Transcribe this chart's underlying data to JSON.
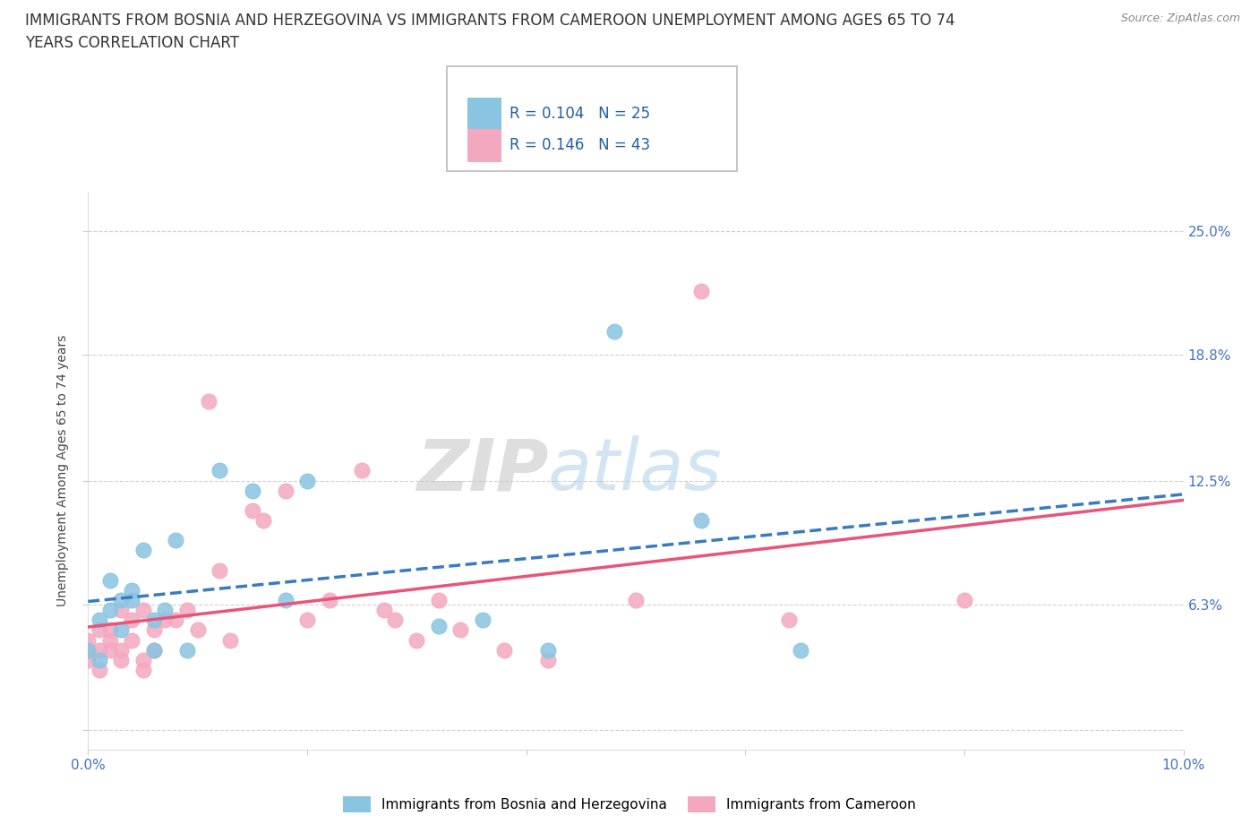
{
  "title_line1": "IMMIGRANTS FROM BOSNIA AND HERZEGOVINA VS IMMIGRANTS FROM CAMEROON UNEMPLOYMENT AMONG AGES 65 TO 74",
  "title_line2": "YEARS CORRELATION CHART",
  "source": "Source: ZipAtlas.com",
  "ylabel": "Unemployment Among Ages 65 to 74 years",
  "xlim": [
    0.0,
    0.1
  ],
  "ylim": [
    -0.01,
    0.27
  ],
  "x_ticks": [
    0.0,
    0.02,
    0.04,
    0.06,
    0.08,
    0.1
  ],
  "x_tick_labels": [
    "0.0%",
    "",
    "",
    "",
    "",
    "10.0%"
  ],
  "y_tick_vals": [
    0.0,
    0.063,
    0.125,
    0.188,
    0.25
  ],
  "y_tick_labels": [
    "",
    "6.3%",
    "12.5%",
    "18.8%",
    "25.0%"
  ],
  "color_bosnia": "#89c4e1",
  "color_cameroon": "#f4a8bf",
  "trendline_color_bosnia": "#3a7bbf",
  "trendline_color_cameroon": "#e8547a",
  "watermark_zip": "ZIP",
  "watermark_atlas": "atlas",
  "legend_R_bosnia": "R = 0.104",
  "legend_N_bosnia": "N = 25",
  "legend_R_cameroon": "R = 0.146",
  "legend_N_cameroon": "N = 43",
  "bosnia_x": [
    0.0,
    0.001,
    0.001,
    0.002,
    0.002,
    0.003,
    0.003,
    0.004,
    0.004,
    0.005,
    0.006,
    0.006,
    0.007,
    0.008,
    0.009,
    0.012,
    0.015,
    0.018,
    0.02,
    0.032,
    0.036,
    0.042,
    0.048,
    0.056,
    0.065
  ],
  "bosnia_y": [
    0.04,
    0.055,
    0.035,
    0.06,
    0.075,
    0.065,
    0.05,
    0.07,
    0.065,
    0.09,
    0.055,
    0.04,
    0.06,
    0.095,
    0.04,
    0.13,
    0.12,
    0.065,
    0.125,
    0.052,
    0.055,
    0.04,
    0.2,
    0.105,
    0.04
  ],
  "cameroon_x": [
    0.0,
    0.0,
    0.0,
    0.001,
    0.001,
    0.001,
    0.002,
    0.002,
    0.002,
    0.003,
    0.003,
    0.003,
    0.004,
    0.004,
    0.005,
    0.005,
    0.005,
    0.006,
    0.006,
    0.007,
    0.008,
    0.009,
    0.01,
    0.011,
    0.012,
    0.013,
    0.015,
    0.016,
    0.018,
    0.02,
    0.022,
    0.025,
    0.027,
    0.028,
    0.03,
    0.032,
    0.034,
    0.038,
    0.042,
    0.05,
    0.056,
    0.064,
    0.08
  ],
  "cameroon_y": [
    0.04,
    0.045,
    0.035,
    0.05,
    0.04,
    0.03,
    0.05,
    0.04,
    0.045,
    0.06,
    0.035,
    0.04,
    0.055,
    0.045,
    0.06,
    0.035,
    0.03,
    0.05,
    0.04,
    0.055,
    0.055,
    0.06,
    0.05,
    0.165,
    0.08,
    0.045,
    0.11,
    0.105,
    0.12,
    0.055,
    0.065,
    0.13,
    0.06,
    0.055,
    0.045,
    0.065,
    0.05,
    0.04,
    0.035,
    0.065,
    0.22,
    0.055,
    0.065
  ],
  "background_color": "#ffffff",
  "grid_color": "#cccccc",
  "title_fontsize": 12,
  "label_fontsize": 10,
  "tick_fontsize": 11,
  "tick_color": "#4472c4"
}
